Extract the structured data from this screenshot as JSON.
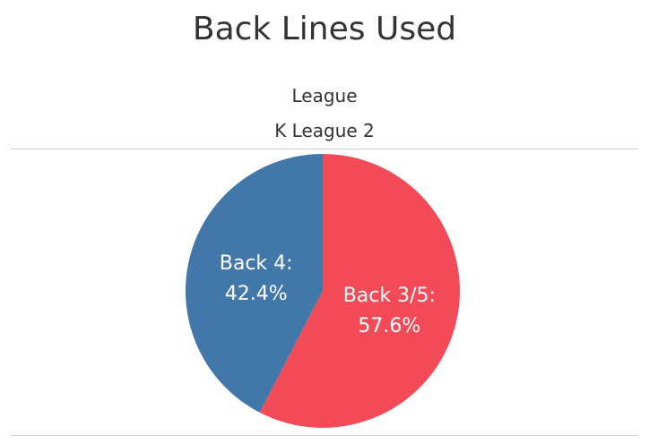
{
  "chart_data": {
    "type": "pie",
    "title": "Back Lines Used",
    "header": {
      "label": "League",
      "value": "K League 2"
    },
    "slices": [
      {
        "name": "Back 3/5",
        "value": 57.6,
        "label_line1": "Back 3/5:",
        "label_line2": "57.6%",
        "color": "#f34a58"
      },
      {
        "name": "Back 4",
        "value": 42.4,
        "label_line1": "Back 4:",
        "label_line2": "42.4%",
        "color": "#4277aa"
      }
    ]
  }
}
